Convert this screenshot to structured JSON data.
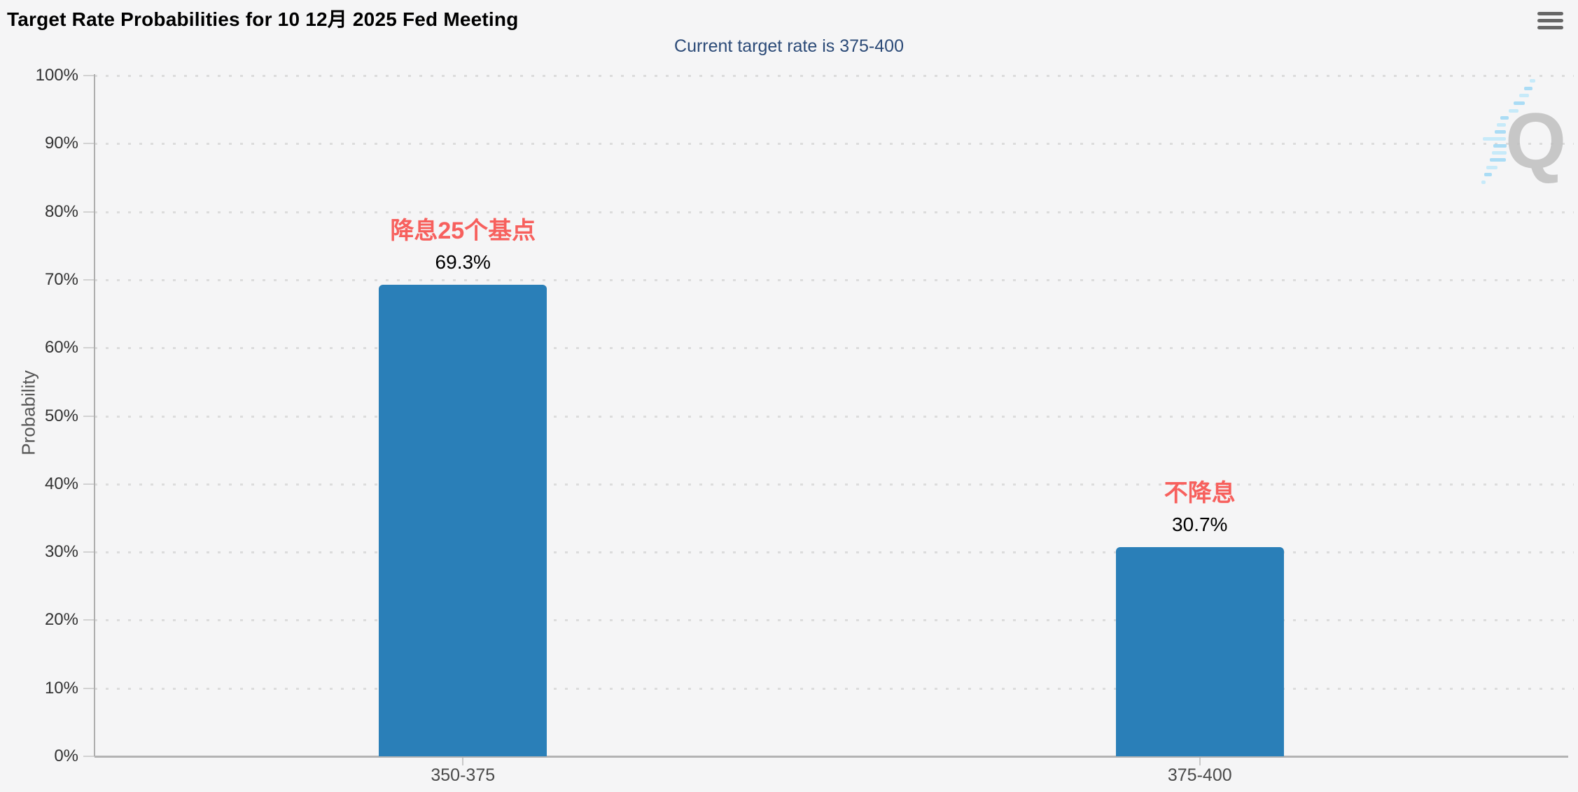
{
  "header": {
    "title": "Target Rate Probabilities for 10 12月 2025 Fed Meeting",
    "menu_icon": "hamburger-icon"
  },
  "chart_data": {
    "type": "bar",
    "title": "Target Rate Probabilities for 10 12月 2025 Fed Meeting",
    "subtitle": "Current target rate is 375-400",
    "ylabel": "Probability",
    "xlabel": "",
    "categories": [
      "350-375",
      "375-400"
    ],
    "values": [
      69.3,
      30.7
    ],
    "value_labels": [
      "69.3%",
      "30.7%"
    ],
    "annotations": [
      "降息25个基点",
      "不降息"
    ],
    "ylim": [
      0,
      100
    ],
    "ytick_step": 10,
    "ytick_suffix": "%",
    "grid": "dotted-horizontal",
    "legend": "none",
    "colors": {
      "bar": "#2a7fb8",
      "annotation": "#f7605d",
      "subtitle": "#2b4a77",
      "title": "#000000",
      "background": "#f5f5f6",
      "axis": "#b3b3b3",
      "tick_label": "#333333",
      "category_label": "#4a4a4a",
      "value_label": "#000000",
      "grid_dot": "#dcdcdc"
    }
  },
  "watermark": {
    "letter": "Q"
  }
}
